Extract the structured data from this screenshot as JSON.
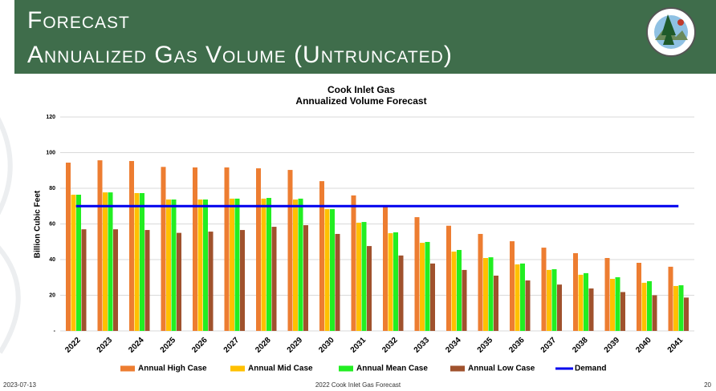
{
  "slide": {
    "title_lines": [
      "Forecast",
      "Annualized Gas Volume (Untruncated)"
    ]
  },
  "footer": {
    "date": "2023-07-13",
    "center": "2022 Cook Inlet Gas Forecast",
    "page": "20"
  },
  "chart_data": {
    "type": "bar",
    "title": "Cook Inlet Gas",
    "subtitle": "Annualized Volume Forecast",
    "y_label": "Billion Cubic Feet",
    "categories": [
      "2022",
      "2023",
      "2024",
      "2025",
      "2026",
      "2027",
      "2028",
      "2029",
      "2030",
      "2031",
      "2032",
      "2033",
      "2034",
      "2035",
      "2036",
      "2037",
      "2038",
      "2039",
      "2040",
      "2041"
    ],
    "ylim": [
      0,
      120
    ],
    "yticks": [
      {
        "value": 0,
        "label": "-"
      },
      20,
      40,
      60,
      80,
      100,
      120
    ],
    "grid": true,
    "legend": "bottom",
    "series": [
      {
        "name": "Annual High Case",
        "color": "#ed7d31",
        "values": [
          94.4,
          95.7,
          95.3,
          92,
          91.7,
          91.7,
          91.2,
          90.3,
          84,
          76,
          69.7,
          63.8,
          59,
          54.4,
          50.3,
          46.7,
          43.6,
          40.9,
          38.2,
          36
        ]
      },
      {
        "name": "Annual Mid Case",
        "color": "#ffc000",
        "values": [
          76.4,
          77.7,
          77.3,
          73.7,
          73.7,
          74.2,
          74.2,
          73.7,
          68.3,
          60.7,
          54.8,
          49.4,
          44.5,
          40.9,
          37.3,
          34.2,
          31.5,
          29.2,
          27,
          25.2
        ]
      },
      {
        "name": "Annual Mean Case",
        "color": "#22ee22",
        "values": [
          76.4,
          77.7,
          77.3,
          73.7,
          73.7,
          74.2,
          74.6,
          74.2,
          68.3,
          61.1,
          55.3,
          49.9,
          45.4,
          41.3,
          37.8,
          34.6,
          32.4,
          30.1,
          27.9,
          25.6
        ]
      },
      {
        "name": "Annual Low Case",
        "color": "#a0522d",
        "values": [
          57,
          57,
          56.6,
          55,
          55.7,
          56.6,
          58.4,
          59.3,
          54.4,
          47.6,
          42.3,
          37.8,
          34.2,
          31,
          28.3,
          26,
          23.8,
          21.8,
          20,
          18.7
        ]
      },
      {
        "name": "Demand",
        "type": "line",
        "color": "#0000ee",
        "values": [
          70,
          70,
          70,
          70,
          70,
          70,
          70,
          70,
          70,
          70,
          70,
          70,
          70,
          70,
          70,
          70,
          70,
          70,
          70,
          70
        ]
      }
    ]
  }
}
